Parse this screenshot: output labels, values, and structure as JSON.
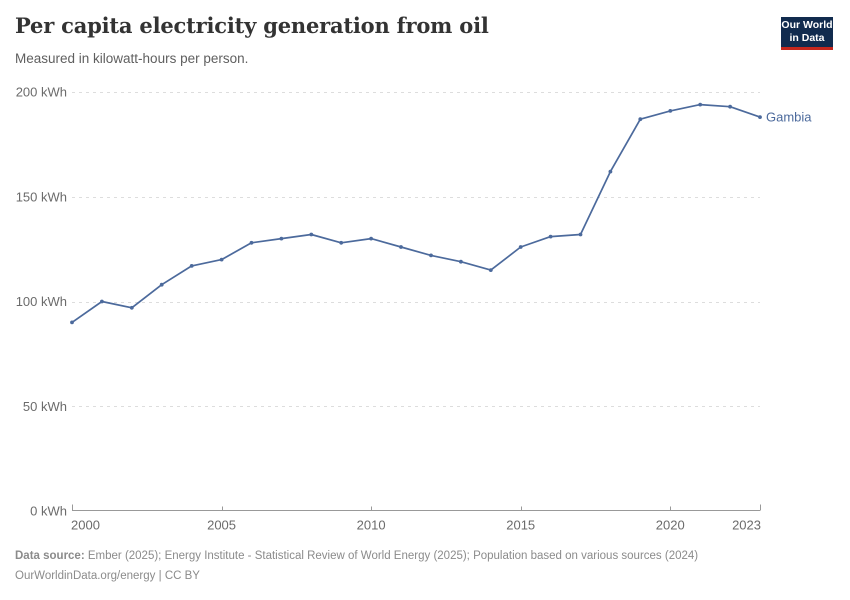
{
  "header": {
    "title": "Per capita electricity generation from oil",
    "subtitle": "Measured in kilowatt-hours per person.",
    "logo": {
      "line1": "Our World",
      "line2": "in Data"
    }
  },
  "chart_data": {
    "type": "line",
    "title": "Per capita electricity generation from oil",
    "subtitle": "Measured in kilowatt-hours per person.",
    "unit": "kWh",
    "x": [
      2000,
      2001,
      2002,
      2003,
      2004,
      2005,
      2006,
      2007,
      2008,
      2009,
      2010,
      2011,
      2012,
      2013,
      2014,
      2015,
      2016,
      2017,
      2018,
      2019,
      2020,
      2021,
      2022,
      2023
    ],
    "series": [
      {
        "name": "Gambia",
        "color": "#4C6A9C",
        "values": [
          90,
          100,
          97,
          108,
          117,
          120,
          128,
          130,
          132,
          128,
          130,
          126,
          122,
          119,
          115,
          126,
          131,
          132,
          162,
          187,
          191,
          194,
          193,
          188
        ]
      }
    ],
    "xlim": [
      2000,
      2023
    ],
    "ylim": [
      0,
      200
    ],
    "yticks": [
      {
        "value": 0,
        "label": "0 kWh"
      },
      {
        "value": 50,
        "label": "50 kWh"
      },
      {
        "value": 100,
        "label": "100 kWh"
      },
      {
        "value": 150,
        "label": "150 kWh"
      },
      {
        "value": 200,
        "label": "200 kWh"
      }
    ],
    "xticks": [
      {
        "value": 2000,
        "label": "2000",
        "anchor": "start"
      },
      {
        "value": 2005,
        "label": "2005",
        "anchor": "middle"
      },
      {
        "value": 2010,
        "label": "2010",
        "anchor": "middle"
      },
      {
        "value": 2015,
        "label": "2015",
        "anchor": "middle"
      },
      {
        "value": 2020,
        "label": "2020",
        "anchor": "middle"
      },
      {
        "value": 2023,
        "label": "2023",
        "anchor": "end"
      }
    ],
    "grid": true,
    "legend_position": "end-of-line"
  },
  "colors": {
    "title_text": "#333333",
    "subtitle_text": "#5f5f5f",
    "tick_label": "#6b6b6b",
    "grid": "#dddddd",
    "axis": "#999999",
    "series_blue": "#4C6A9C",
    "footer_text": "#8b8b8b",
    "logo_navy": "#112b4e",
    "logo_red": "#c5271d",
    "logo_text": "#ffffff"
  },
  "footer": {
    "datasource_label": "Data source:",
    "datasource_text": "Ember (2025); Energy Institute - Statistical Review of World Energy (2025); Population based on various sources (2024)",
    "site_link": "OurWorldinData.org/energy",
    "separator": " | ",
    "license": "CC BY"
  }
}
